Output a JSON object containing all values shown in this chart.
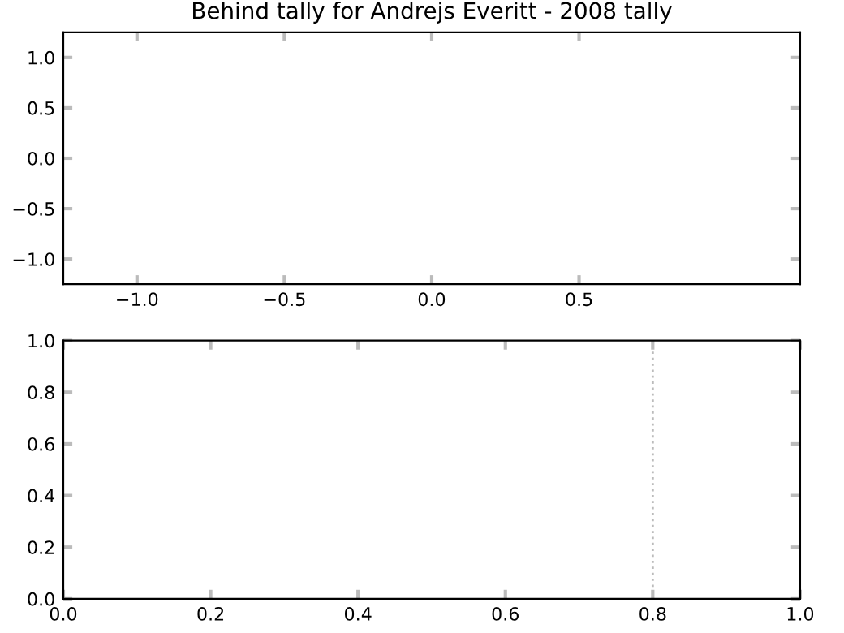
{
  "chart_data": [
    {
      "type": "line",
      "title": "Behind tally for Andrejs Everitt - 2008 tally",
      "xlim": [
        -1.25,
        1.25
      ],
      "ylim": [
        -1.25,
        1.25
      ],
      "xticks": [
        {
          "value": -1.0,
          "label": "−1.0"
        },
        {
          "value": -0.5,
          "label": "−0.5"
        },
        {
          "value": 0.0,
          "label": "0.0"
        },
        {
          "value": 0.5,
          "label": "0.5"
        }
      ],
      "yticks": [
        {
          "value": -1.0,
          "label": "−1.0"
        },
        {
          "value": -0.5,
          "label": "−0.5"
        },
        {
          "value": 0.0,
          "label": "0.0"
        },
        {
          "value": 0.5,
          "label": "0.5"
        },
        {
          "value": 1.0,
          "label": "1.0"
        }
      ],
      "grid": false,
      "legend": false
    },
    {
      "type": "line",
      "xlim": [
        0.0,
        1.0
      ],
      "ylim": [
        0.0,
        1.0
      ],
      "xticks": [
        {
          "value": 0.0,
          "label": "0.0"
        },
        {
          "value": 0.2,
          "label": "0.2"
        },
        {
          "value": 0.4,
          "label": "0.4"
        },
        {
          "value": 0.6,
          "label": "0.6"
        },
        {
          "value": 0.8,
          "label": "0.8"
        },
        {
          "value": 1.0,
          "label": "1.0"
        }
      ],
      "yticks": [
        {
          "value": 0.0,
          "label": "0.0"
        },
        {
          "value": 0.2,
          "label": "0.2"
        },
        {
          "value": 0.4,
          "label": "0.4"
        },
        {
          "value": 0.6,
          "label": "0.6"
        },
        {
          "value": 0.8,
          "label": "0.8"
        },
        {
          "value": 1.0,
          "label": "1.0"
        }
      ],
      "grid": false,
      "legend": false,
      "ref_lines": [
        {
          "axis": "x",
          "value": 0.8,
          "label": null,
          "color": "#bbbbbb",
          "line_style": "dotted"
        }
      ]
    }
  ]
}
